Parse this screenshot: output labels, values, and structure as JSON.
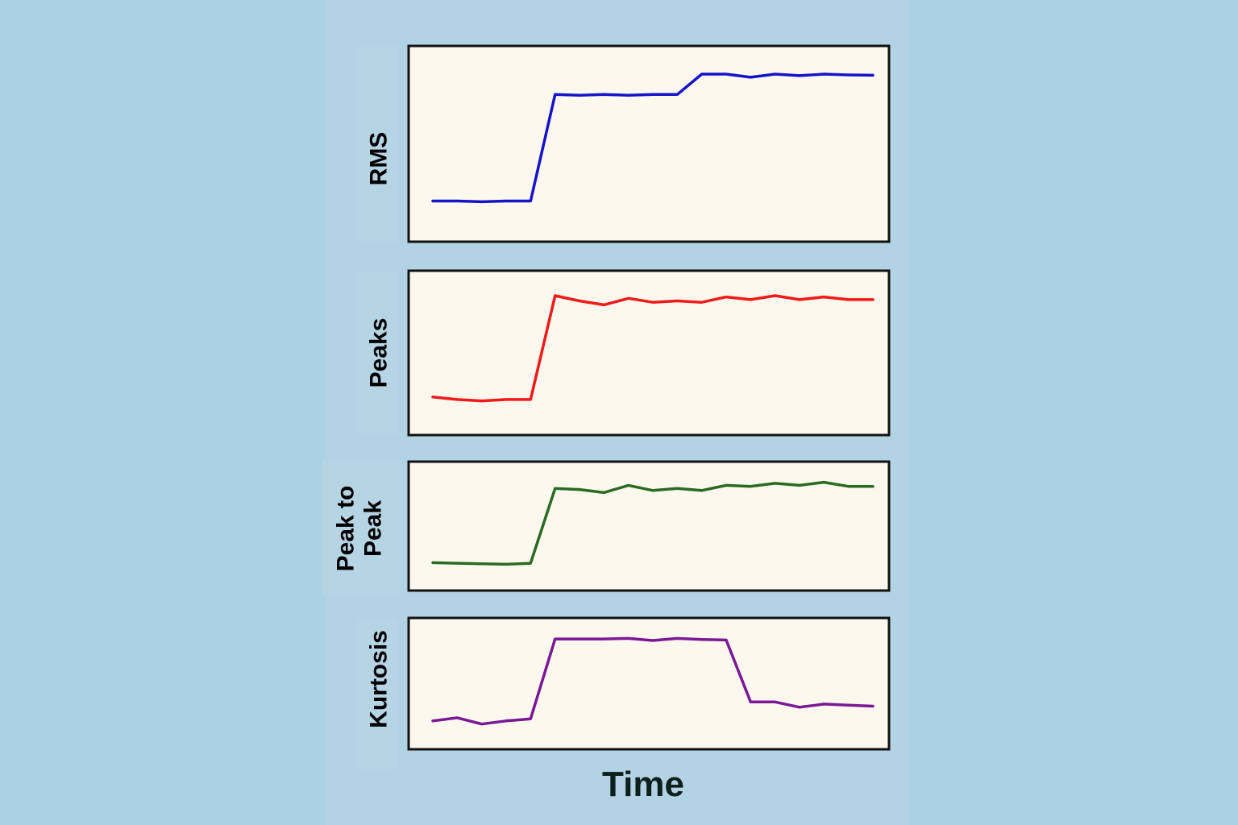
{
  "chart_data": {
    "type": "line",
    "xlabel": "Time",
    "background_color": "#abd1e5",
    "figure_panel_color": "#b2d3e3",
    "plot_bg_color": "#fcf8ee",
    "x": [
      0,
      1,
      2,
      3,
      4,
      5,
      6,
      7,
      8,
      9,
      10,
      11,
      12,
      13,
      14,
      15,
      16,
      17,
      18
    ],
    "series": [
      {
        "name": "RMS",
        "ylabel": [
          "RMS"
        ],
        "color": "#1414c8",
        "ylim": [
          0,
          1
        ],
        "values": [
          0.11,
          0.11,
          0.105,
          0.11,
          0.11,
          0.79,
          0.785,
          0.79,
          0.785,
          0.79,
          0.79,
          0.92,
          0.92,
          0.9,
          0.92,
          0.91,
          0.92,
          0.915,
          0.913
        ]
      },
      {
        "name": "Peaks",
        "ylabel": [
          "Peaks"
        ],
        "color": "#ef1a1a",
        "ylim": [
          0,
          1
        ],
        "values": [
          0.14,
          0.12,
          0.11,
          0.12,
          0.12,
          0.91,
          0.87,
          0.84,
          0.89,
          0.86,
          0.87,
          0.86,
          0.9,
          0.88,
          0.91,
          0.88,
          0.9,
          0.88,
          0.88
        ]
      },
      {
        "name": "Peak to Peak",
        "ylabel": [
          "Peak to",
          "Peak"
        ],
        "color": "#2a6a24",
        "ylim": [
          0,
          1
        ],
        "values": [
          0.12,
          0.115,
          0.11,
          0.105,
          0.115,
          0.84,
          0.83,
          0.8,
          0.87,
          0.82,
          0.84,
          0.82,
          0.87,
          0.86,
          0.89,
          0.87,
          0.9,
          0.86,
          0.86
        ]
      },
      {
        "name": "Kurtosis",
        "ylabel": [
          "Kurtosis"
        ],
        "color": "#7b1895",
        "ylim": [
          0,
          1
        ],
        "values": [
          0.12,
          0.15,
          0.09,
          0.12,
          0.14,
          0.9,
          0.9,
          0.9,
          0.905,
          0.885,
          0.905,
          0.895,
          0.89,
          0.3,
          0.3,
          0.25,
          0.28,
          0.27,
          0.26
        ]
      }
    ]
  }
}
